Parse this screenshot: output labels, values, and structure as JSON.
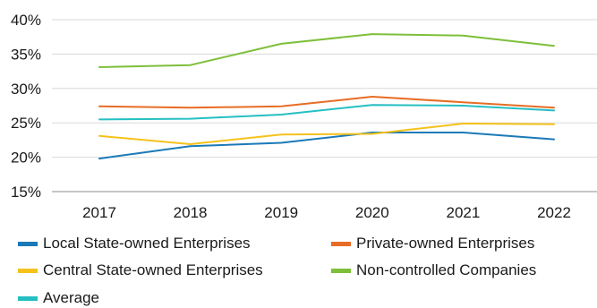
{
  "chart_data": {
    "type": "line",
    "title": "",
    "xlabel": "",
    "ylabel": "",
    "x": [
      "2017",
      "2018",
      "2019",
      "2020",
      "2021",
      "2022"
    ],
    "ylim": [
      15,
      40
    ],
    "yticks": [
      "15%",
      "20%",
      "25%",
      "30%",
      "35%",
      "40%"
    ],
    "grid": true,
    "legend_position": "bottom",
    "series": [
      {
        "name": "Local State-owned Enterprises",
        "color": "#1a7ab8",
        "values": [
          19.8,
          21.6,
          22.1,
          23.6,
          23.6,
          22.6
        ]
      },
      {
        "name": "Private-owned Enterprises",
        "color": "#e86c25",
        "values": [
          27.4,
          27.2,
          27.4,
          28.8,
          28.0,
          27.2
        ]
      },
      {
        "name": "Central State-owned Enterprises",
        "color": "#f5c21b",
        "values": [
          23.1,
          21.9,
          23.3,
          23.4,
          24.9,
          24.8
        ]
      },
      {
        "name": "Non-controlled Companies",
        "color": "#7ebf3a",
        "values": [
          33.1,
          33.4,
          36.5,
          37.9,
          37.7,
          36.2
        ]
      },
      {
        "name": "Average",
        "color": "#25bfc2",
        "values": [
          25.5,
          25.6,
          26.2,
          27.6,
          27.5,
          26.8
        ]
      }
    ]
  }
}
